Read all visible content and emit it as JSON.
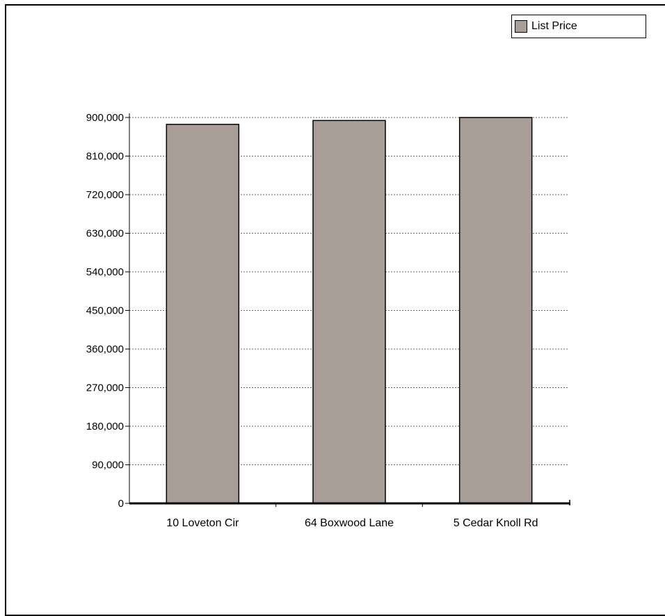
{
  "chart_data": {
    "type": "bar",
    "categories": [
      "10 Loveton Cir",
      "64 Boxwood Lane",
      "5 Cedar Knoll Rd"
    ],
    "series": [
      {
        "name": "List Price",
        "values": [
          884000,
          893000,
          900000
        ]
      }
    ],
    "title": "",
    "xlabel": "",
    "ylabel": "",
    "ylim": [
      0,
      900000
    ],
    "yticks": [
      0,
      90000,
      180000,
      270000,
      360000,
      450000,
      540000,
      630000,
      720000,
      810000,
      900000
    ],
    "ytick_labels": [
      "0",
      "90,000",
      "180,000",
      "270,000",
      "360,000",
      "450,000",
      "540,000",
      "630,000",
      "720,000",
      "810,000",
      "900,000"
    ],
    "grid": "horizontal dashed",
    "legend_position": "top-right",
    "colors": {
      "bar_fill": "#a89e97",
      "bar_stroke": "#000000",
      "grid": "#666666"
    }
  }
}
